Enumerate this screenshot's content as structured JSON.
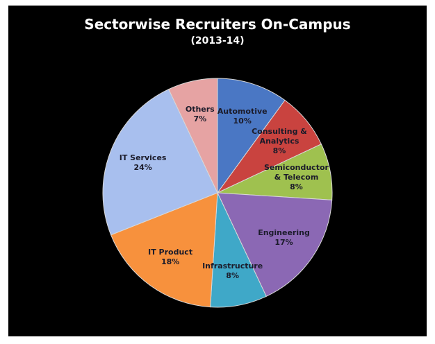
{
  "chart_data": {
    "type": "pie",
    "title": "Sectorwise Recruiters On-Campus",
    "subtitle": "(2013-14)",
    "categories": [
      "Automotive",
      "Consulting & Analytics",
      "Semiconductor & Telecom",
      "Engineering",
      "Infrastructure",
      "IT Product",
      "IT Services",
      "Others"
    ],
    "values": [
      10,
      8,
      8,
      17,
      8,
      18,
      24,
      7
    ],
    "value_labels": [
      "10%",
      "8%",
      "8%",
      "17%",
      "8%",
      "18%",
      "24%",
      "7%"
    ],
    "colors": [
      "#4a77c4",
      "#c9433f",
      "#9fc14f",
      "#8b68b4",
      "#3fa8c8",
      "#f7913d",
      "#a8bfee",
      "#e6a3a3"
    ]
  }
}
